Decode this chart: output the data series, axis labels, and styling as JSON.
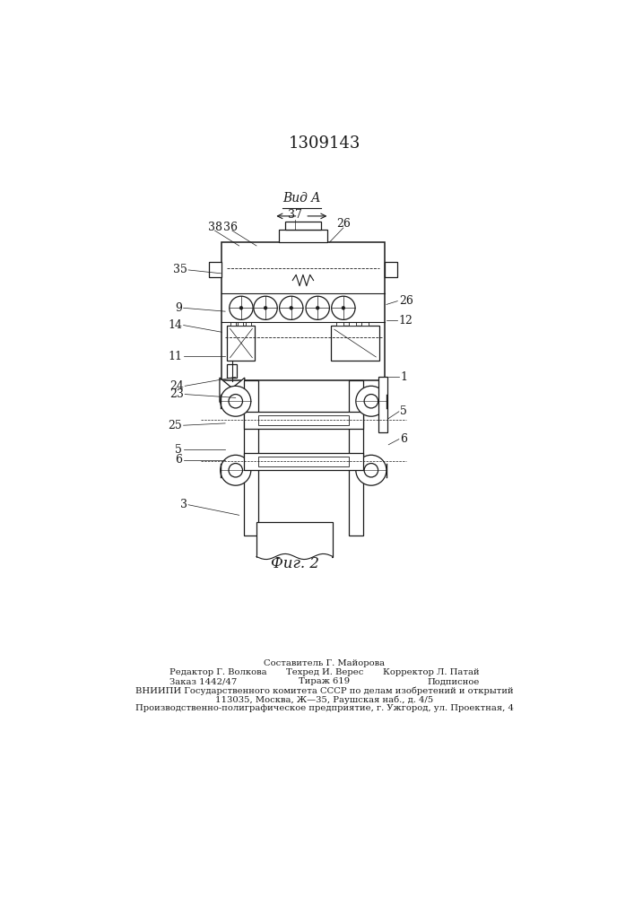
{
  "patent_number": "1309143",
  "figure_label": "Фиг. 2",
  "view_label": "Вид A",
  "background_color": "#ffffff",
  "line_color": "#1a1a1a",
  "footer_col1_line1": "Редактор Г. Волкова",
  "footer_col1_line2": "Заказ 1442/47",
  "footer_col2_line0": "Составитель Г. Майорова",
  "footer_col2_line1": "Техред И. Верес",
  "footer_col2_line2": "Тираж 619",
  "footer_col3_line1": "Корректор Л. Патай",
  "footer_col3_line2": "Подписное",
  "footer_vniipи": "ВНИИПИ Государственного комитета СССР по делам изобретений и открытий",
  "footer_addr": "113035, Москва, Ж—35, Раушская наб., д. 4/5",
  "footer_plant": "Производственно-полиграфическое предприятие, г. Ужгород, ул. Проектная, 4"
}
